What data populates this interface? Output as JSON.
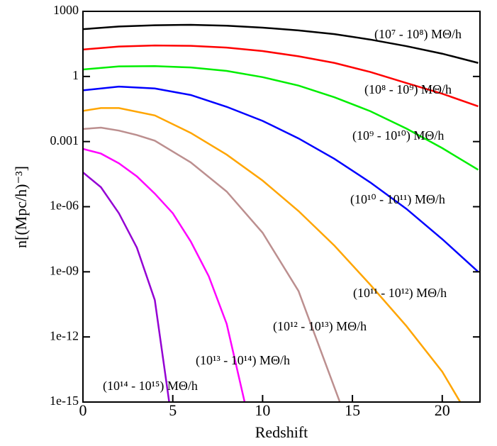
{
  "chart_data": {
    "type": "line",
    "xlabel": "Redshift",
    "ylabel": "n[(Mpc/h)⁻³]",
    "log_y": true,
    "xlim": [
      0,
      22.1
    ],
    "xticks": [
      0,
      5,
      10,
      15,
      20
    ],
    "ylim": [
      1e-15,
      1000
    ],
    "yticks": [
      {
        "value": 1e-15,
        "label": "1e-15"
      },
      {
        "value": 1e-12,
        "label": "1e-12"
      },
      {
        "value": 1e-09,
        "label": "1e-09"
      },
      {
        "value": 1e-06,
        "label": "1e-06"
      },
      0.001,
      1,
      1000
    ],
    "series": [
      {
        "name": "(10⁷ - 10⁸) MΘ/h",
        "color": "#000000",
        "x": [
          0,
          2,
          4,
          6,
          8,
          10,
          12,
          14,
          16,
          18,
          20,
          22
        ],
        "values": [
          151,
          200,
          229,
          240,
          219,
          178,
          132,
          89,
          50,
          25,
          11.2,
          4.2
        ]
      },
      {
        "name": "(10⁸ - 10⁹) MΘ/h",
        "color": "#ff0000",
        "x": [
          0,
          2,
          4,
          6,
          8,
          10,
          12,
          14,
          16,
          18,
          20,
          22
        ],
        "values": [
          17.4,
          24,
          26.9,
          25.7,
          21.4,
          14.8,
          8.5,
          4.2,
          1.6,
          0.5,
          0.16,
          0.042
        ]
      },
      {
        "name": "(10⁹ - 10¹⁰) MΘ/h",
        "color": "#00ee00",
        "x": [
          0,
          2,
          4,
          6,
          8,
          10,
          12,
          14,
          16,
          18,
          20,
          22
        ],
        "values": [
          2.1,
          2.9,
          3.0,
          2.6,
          1.8,
          0.93,
          0.38,
          0.11,
          0.025,
          0.004,
          0.0005,
          5e-05
        ]
      },
      {
        "name": "(10¹⁰ - 10¹¹) MΘ/h",
        "color": "#0000ff",
        "x": [
          0,
          2,
          4,
          6,
          8,
          10,
          12,
          14,
          16,
          18,
          20,
          22
        ],
        "values": [
          0.23,
          0.34,
          0.28,
          0.14,
          0.04,
          0.009,
          0.0014,
          0.00016,
          1.3e-05,
          8e-07,
          3.2e-08,
          1e-09
        ]
      },
      {
        "name": "(10¹¹ - 10¹²) MΘ/h",
        "color": "#ffa500",
        "x": [
          0,
          1,
          2,
          4,
          6,
          8,
          10,
          12,
          14,
          16,
          18,
          20,
          21
        ],
        "values": [
          0.026,
          0.035,
          0.035,
          0.016,
          0.0025,
          0.00025,
          1.6e-05,
          6.3e-07,
          1.6e-08,
          2.5e-10,
          3.2e-12,
          2.5e-14,
          1e-15
        ]
      },
      {
        "name": "(10¹² - 10¹³) MΘ/h",
        "color": "#bc8f8f",
        "x": [
          0,
          1,
          2,
          3,
          4,
          6,
          8,
          10,
          12,
          14.3
        ],
        "values": [
          0.0038,
          0.0044,
          0.0032,
          0.002,
          0.0011,
          0.00011,
          5e-06,
          6.3e-08,
          1.3e-10,
          1e-15
        ]
      },
      {
        "name": "(10¹³ - 10¹⁴) MΘ/h",
        "color": "#ff00ff",
        "x": [
          0,
          1,
          2,
          3,
          4,
          5,
          6,
          7,
          8,
          9
        ],
        "values": [
          0.00046,
          0.00028,
          0.0001,
          2.5e-05,
          4e-06,
          5e-07,
          2.5e-08,
          6.3e-10,
          4e-12,
          1e-15
        ]
      },
      {
        "name": "(10¹⁴ - 10¹⁵) MΘ/h",
        "color": "#9400d3",
        "x": [
          0,
          1,
          2,
          3,
          4,
          4.8
        ],
        "values": [
          3.8e-05,
          7.9e-06,
          5e-07,
          1.3e-08,
          5e-11,
          1e-15
        ]
      }
    ]
  }
}
